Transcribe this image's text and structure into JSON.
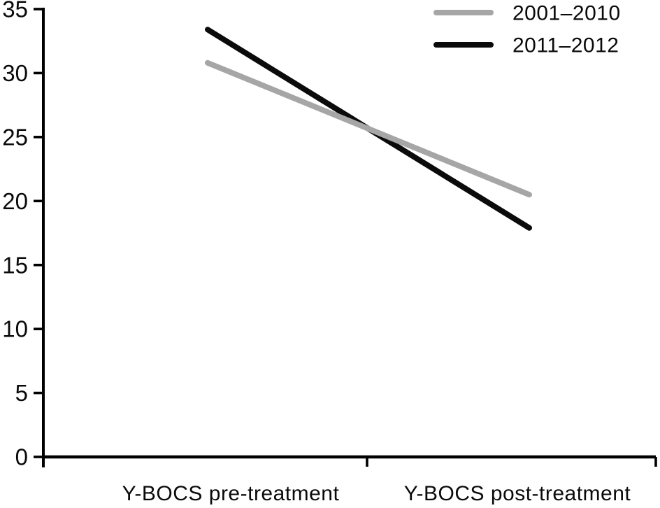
{
  "chart_data": {
    "type": "line",
    "title": "",
    "xlabel": "",
    "ylabel": "",
    "categories": [
      "Y-BOCS pre-treatment",
      "Y-BOCS post-treatment"
    ],
    "series": [
      {
        "name": "2001–2010",
        "color": "#a6a6a6",
        "values": [
          30.8,
          20.5
        ]
      },
      {
        "name": "2011–2012",
        "color": "#0b0b0b",
        "values": [
          33.4,
          17.9
        ]
      }
    ],
    "ylim": [
      0,
      35
    ],
    "yticks": [
      0,
      5,
      10,
      15,
      20,
      25,
      30,
      35
    ],
    "grid": false,
    "legend_position": "top-right",
    "colors": {
      "axis": "#000000",
      "text": "#0a0a0a",
      "background": "#ffffff"
    }
  }
}
